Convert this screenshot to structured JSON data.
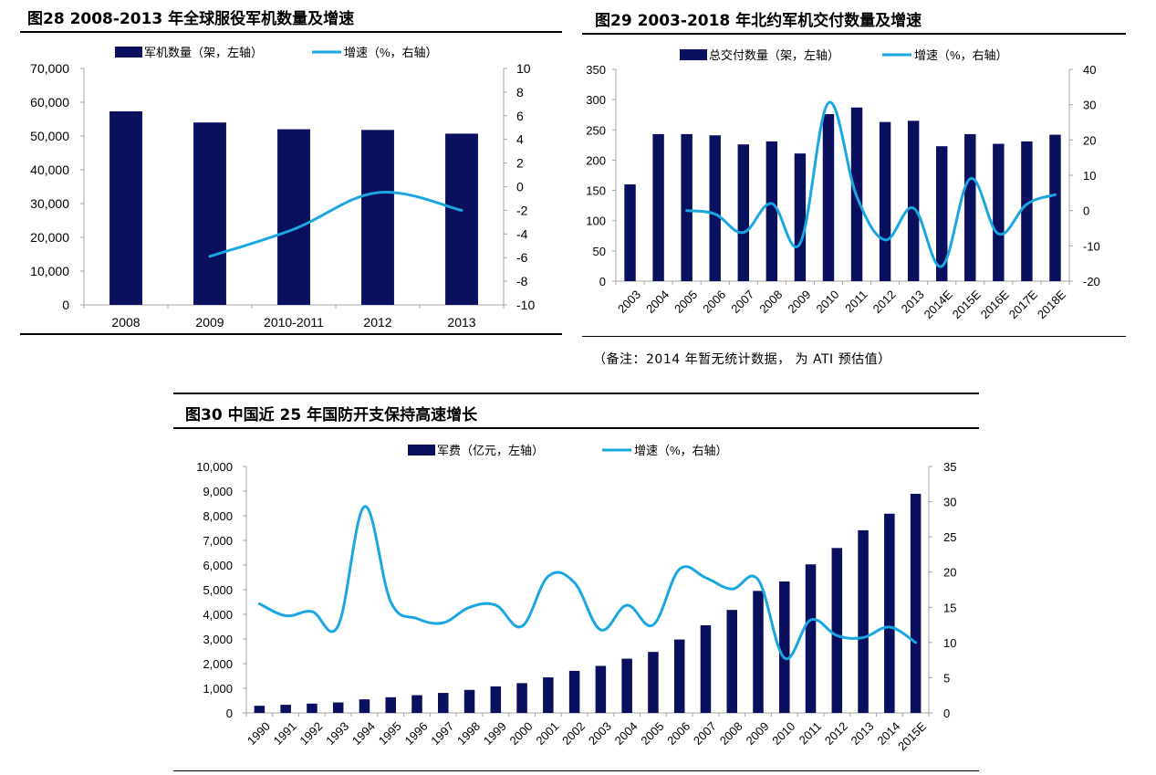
{
  "colors": {
    "bar": "#0a0f5e",
    "line": "#1aa6e0",
    "axis": "#a6a6a6"
  },
  "fig28": {
    "title": "图28 2008-2013 年全球服役军机数量及增速"
  },
  "fig29": {
    "title": "图29 2003-2018 年北约军机交付数量及增速",
    "note": "（备注：2014 年暂无统计数据， 为 ATI 预估值）"
  },
  "fig30": {
    "title": "图30 中国近 25 年国防开支保持高速增长"
  },
  "chart_data": [
    {
      "type": "bar",
      "title": "图28 2008-2013 年全球服役军机数量及增速",
      "categories": [
        "2008",
        "2009",
        "2010-2011",
        "2012",
        "2013"
      ],
      "series": [
        {
          "name": "军机数量（架，左轴）",
          "type": "bar",
          "axis": "left",
          "values": [
            57300,
            54000,
            52000,
            51800,
            50700
          ]
        },
        {
          "name": "增速（%，右轴）",
          "type": "line",
          "axis": "right",
          "values": [
            null,
            -5.9,
            -3.6,
            -0.5,
            -2.0
          ]
        }
      ],
      "left_axis": {
        "ylim": [
          0,
          70000
        ],
        "ticks": [
          "0",
          "10,000",
          "20,000",
          "30,000",
          "40,000",
          "50,000",
          "60,000",
          "70,000"
        ]
      },
      "right_axis": {
        "ylim": [
          -10,
          10
        ],
        "ticks": [
          "-10",
          "-8",
          "-6",
          "-4",
          "-2",
          "0",
          "2",
          "4",
          "6",
          "8",
          "10"
        ]
      },
      "legend": "top",
      "grid": false
    },
    {
      "type": "bar",
      "title": "图29 2003-2018 年北约军机交付数量及增速",
      "categories": [
        "2003",
        "2004",
        "2005",
        "2006",
        "2007",
        "2008",
        "2009",
        "2010",
        "2011",
        "2012",
        "2013",
        "2014E",
        "2015E",
        "2016E",
        "2017E",
        "2018E"
      ],
      "series": [
        {
          "name": "总交付数量（架，左轴）",
          "type": "bar",
          "axis": "left",
          "values": [
            160,
            243,
            243,
            241,
            226,
            231,
            211,
            276,
            287,
            263,
            265,
            223,
            243,
            227,
            231,
            242
          ]
        },
        {
          "name": "增速（%，右轴）",
          "type": "line",
          "axis": "right",
          "values": [
            null,
            null,
            0.0,
            -1.0,
            -6.2,
            2.0,
            -9.3,
            30.5,
            4.0,
            -8.3,
            0.7,
            -15.8,
            9.0,
            -6.6,
            1.8,
            4.5
          ]
        }
      ],
      "left_axis": {
        "ylim": [
          0,
          350
        ],
        "ticks": [
          "0",
          "50",
          "100",
          "150",
          "200",
          "250",
          "300",
          "350"
        ]
      },
      "right_axis": {
        "ylim": [
          -20,
          40
        ],
        "ticks": [
          "-20",
          "-10",
          "0",
          "10",
          "20",
          "30",
          "40"
        ]
      },
      "legend": "top",
      "grid": false
    },
    {
      "type": "bar",
      "title": "图30 中国近 25 年国防开支保持高速增长",
      "categories": [
        "1990",
        "1991",
        "1992",
        "1993",
        "1994",
        "1995",
        "1996",
        "1997",
        "1998",
        "1999",
        "2000",
        "2001",
        "2002",
        "2003",
        "2004",
        "2005",
        "2006",
        "2007",
        "2008",
        "2009",
        "2010",
        "2011",
        "2012",
        "2013",
        "2014",
        "2015E"
      ],
      "series": [
        {
          "name": "军费（亿元，左轴）",
          "type": "bar",
          "axis": "left",
          "values": [
            290,
            330,
            378,
            425,
            550,
            636,
            720,
            812,
            934,
            1076,
            1208,
            1442,
            1708,
            1908,
            2200,
            2475,
            2979,
            3555,
            4179,
            4951,
            5333,
            6028,
            6692,
            7411,
            8083,
            8890
          ]
        },
        {
          "name": "增速（%，右轴）",
          "type": "line",
          "axis": "right",
          "values": [
            15.5,
            13.8,
            14.4,
            12.4,
            29.3,
            15.8,
            13.4,
            12.8,
            15.0,
            15.3,
            12.3,
            19.4,
            18.5,
            11.8,
            15.3,
            12.5,
            20.4,
            19.2,
            17.6,
            18.9,
            7.8,
            13.2,
            11.0,
            10.7,
            12.2,
            10.0
          ]
        }
      ],
      "left_axis": {
        "ylim": [
          0,
          10000
        ],
        "ticks": [
          "0",
          "1,000",
          "2,000",
          "3,000",
          "4,000",
          "5,000",
          "6,000",
          "7,000",
          "8,000",
          "9,000",
          "10,000"
        ]
      },
      "right_axis": {
        "ylim": [
          0,
          35
        ],
        "ticks": [
          "0",
          "5",
          "10",
          "15",
          "20",
          "25",
          "30",
          "35"
        ]
      },
      "legend": "top",
      "grid": false
    }
  ]
}
